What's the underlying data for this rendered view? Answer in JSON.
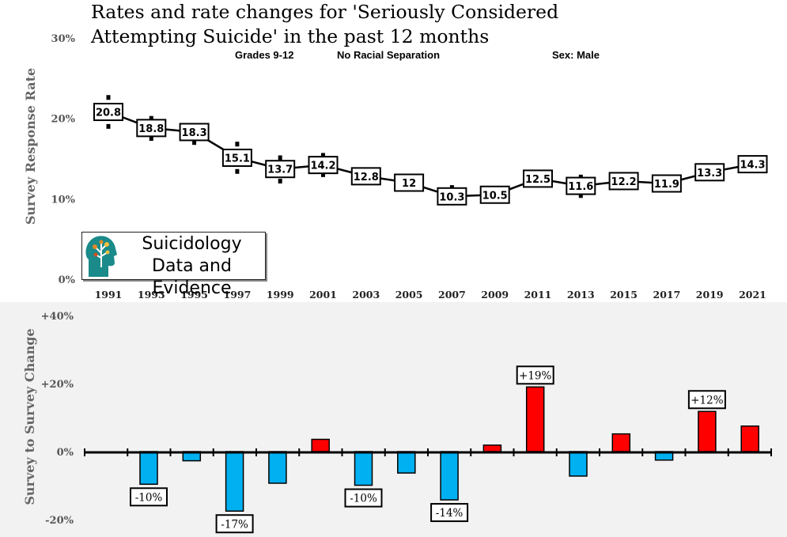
{
  "title_line1": "Rates and rate changes for 'Seriously Considered",
  "title_line2": "Attempting Suicide' in the past 12 months",
  "filters": {
    "grades": "Grades 9-12",
    "race": "No Racial Separation",
    "sex": "Sex: Male"
  },
  "logo": {
    "line1": "Suicidology",
    "line2": "Data and Evidence"
  },
  "chart_data": [
    {
      "type": "line",
      "ylabel": "Survey Response Rate",
      "x": [
        "1991",
        "1993",
        "1995",
        "1997",
        "1999",
        "2001",
        "2003",
        "2005",
        "2007",
        "2009",
        "2011",
        "2013",
        "2015",
        "2017",
        "2019",
        "2021"
      ],
      "values": [
        20.8,
        18.8,
        18.3,
        15.1,
        13.7,
        14.2,
        12.8,
        12,
        10.3,
        10.5,
        12.5,
        11.6,
        12.2,
        11.9,
        13.3,
        14.3
      ],
      "labels": [
        "20.8",
        "18.8",
        "18.3",
        "15.1",
        "13.7",
        "14.2",
        "12.8",
        "12",
        "10.3",
        "10.5",
        "12.5",
        "11.6",
        "12.2",
        "11.9",
        "13.3",
        "14.3"
      ],
      "error_low": [
        19.0,
        17.5,
        17.0,
        13.4,
        12.2,
        13.0,
        null,
        null,
        null,
        null,
        null,
        10.4,
        null,
        null,
        null,
        null
      ],
      "error_high": [
        22.6,
        20.0,
        null,
        16.8,
        15.1,
        15.4,
        null,
        null,
        11.4,
        null,
        null,
        12.7,
        null,
        null,
        null,
        null
      ],
      "yticks": [
        "0%",
        "10%",
        "20%",
        "30%"
      ],
      "ylim": [
        0,
        30
      ],
      "line_color": "#000000"
    },
    {
      "type": "bar",
      "ylabel": "Survey to Survey Change",
      "values": [
        -9.6,
        -2.7,
        -17.5,
        -9.3,
        3.6,
        -9.9,
        -6.3,
        -14.2,
        1.9,
        19.0,
        -7.2,
        5.2,
        -2.5,
        11.8,
        7.5
      ],
      "labels": [
        "-10%",
        null,
        "-17%",
        null,
        null,
        "-10%",
        null,
        "-14%",
        null,
        "+19%",
        null,
        null,
        null,
        "+12%",
        null
      ],
      "yticks": [
        "-20%",
        "0%",
        "+20%",
        "+40%"
      ],
      "ylim": [
        -20,
        40
      ],
      "positive_color": "#ff0000",
      "negative_color": "#00b0f0"
    }
  ]
}
